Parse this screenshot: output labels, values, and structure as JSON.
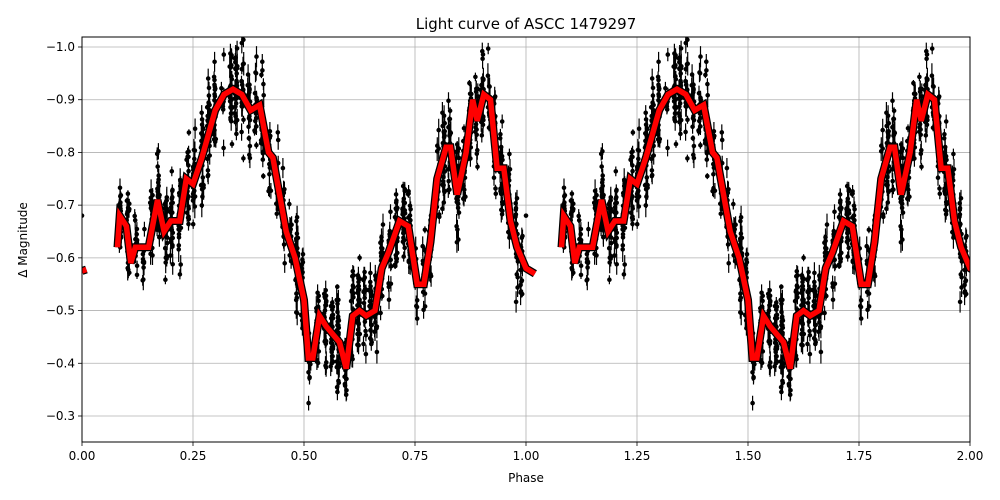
{
  "chart_data": {
    "type": "scatter",
    "title": "Light curve of ASCC 1479297",
    "xlabel": "Phase",
    "ylabel": "Δ Magnitude",
    "xlim": [
      0.0,
      2.0
    ],
    "ylim": [
      -1.02,
      -0.25
    ],
    "y_inverted": true,
    "grid": true,
    "x_ticks": [
      "0.00",
      "0.25",
      "0.50",
      "0.75",
      "1.00",
      "1.25",
      "1.50",
      "1.75",
      "2.00"
    ],
    "y_ticks": [
      "-1.0",
      "-0.9",
      "-0.8",
      "-0.7",
      "-0.6",
      "-0.5",
      "-0.4",
      "-0.3"
    ],
    "series": [
      {
        "name": "observations",
        "style": "black points with error bars",
        "color": "#000000",
        "note": "dense scatter of ~thousands of points spanning roughly -1.02 to -0.25 mag, folded over two phase cycles"
      },
      {
        "name": "binned model",
        "style": "thick red line with black outline",
        "color": "#ff0000",
        "x": [
          0.08,
          0.085,
          0.1,
          0.11,
          0.12,
          0.15,
          0.17,
          0.185,
          0.2,
          0.22,
          0.235,
          0.25,
          0.27,
          0.3,
          0.32,
          0.34,
          0.36,
          0.38,
          0.4,
          0.42,
          0.43,
          0.46,
          0.48,
          0.5,
          0.51,
          0.52,
          0.535,
          0.55,
          0.58,
          0.595,
          0.61,
          0.625,
          0.64,
          0.66,
          0.675,
          0.69,
          0.715,
          0.735,
          0.755,
          0.77,
          0.785,
          0.8,
          0.82,
          0.83,
          0.845,
          0.865,
          0.88,
          0.89,
          0.905,
          0.92,
          0.935,
          0.95,
          0.965,
          0.98,
          1.0,
          1.02
        ],
        "y": [
          -0.62,
          -0.68,
          -0.66,
          -0.59,
          -0.62,
          -0.62,
          -0.71,
          -0.65,
          -0.67,
          -0.67,
          -0.75,
          -0.74,
          -0.79,
          -0.88,
          -0.91,
          -0.92,
          -0.91,
          -0.88,
          -0.89,
          -0.8,
          -0.79,
          -0.65,
          -0.6,
          -0.52,
          -0.41,
          -0.41,
          -0.49,
          -0.47,
          -0.44,
          -0.39,
          -0.49,
          -0.5,
          -0.49,
          -0.5,
          -0.58,
          -0.61,
          -0.67,
          -0.66,
          -0.55,
          -0.55,
          -0.63,
          -0.75,
          -0.81,
          -0.81,
          -0.72,
          -0.8,
          -0.9,
          -0.86,
          -0.91,
          -0.9,
          -0.77,
          -0.77,
          -0.67,
          -0.62,
          -0.58,
          -0.57
        ],
        "repeat_offset": 1.0
      }
    ],
    "edge_segment": {
      "x": [
        0.0,
        0.01
      ],
      "y": [
        -0.575,
        -0.578
      ]
    }
  }
}
